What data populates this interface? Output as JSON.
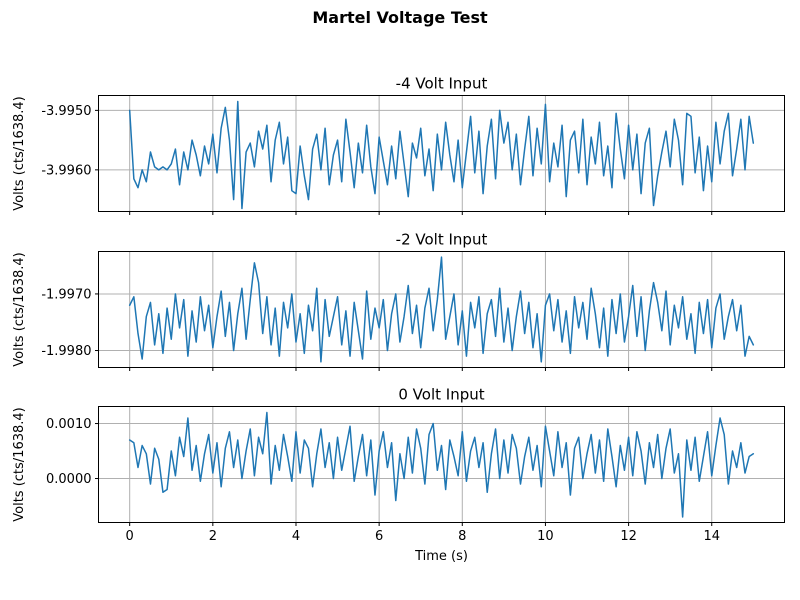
{
  "figure": {
    "title": "Martel Voltage Test",
    "background": "#ffffff",
    "line_color": "#1f77b4",
    "grid_color": "#b0b0b0",
    "spine_color": "#000000",
    "text_color": "#000000"
  },
  "chart_data": {
    "type": "line",
    "title": "Martel Voltage Test",
    "xlabel": "Time (s)",
    "ylabel": "Volts (cts/1638.4)",
    "grid": true,
    "legend": "none",
    "x_start": 0.0,
    "x_step": 0.1,
    "xlim": [
      -0.75,
      15.75
    ],
    "xticks": [
      0,
      2,
      4,
      6,
      8,
      10,
      12,
      14
    ],
    "xtick_labels": [
      "0",
      "2",
      "4",
      "6",
      "8",
      "10",
      "12",
      "14"
    ],
    "value_formula": "value_volts = base + dev[i] * step ; time_s = x_start + i * x_step",
    "subplots": [
      {
        "title": "-4 Volt Input",
        "ylabel": "Volts (cts/1638.4)",
        "ylim": [
          -3.9967,
          -3.99475
        ],
        "yticks": [
          -3.995,
          -3.996
        ],
        "ytick_labels": [
          "-3.9950",
          "-3.9960"
        ],
        "base": -3.9958,
        "step": 5e-05,
        "dev": [
          16,
          -7,
          -10,
          -4,
          -8,
          2,
          -3,
          -4,
          -3,
          -4,
          -2,
          3,
          -9,
          2,
          -4,
          6,
          1,
          -6,
          4,
          -2,
          8,
          -5,
          10,
          17,
          6,
          -14,
          19,
          -17,
          2,
          5,
          -3,
          9,
          3,
          11,
          -8,
          6,
          12,
          -2,
          7,
          -11,
          -12,
          4,
          -6,
          -14,
          3,
          8,
          -4,
          10,
          -9,
          1,
          6,
          -8,
          13,
          2,
          -10,
          5,
          -5,
          11,
          -3,
          -12,
          7,
          -1,
          -9,
          4,
          -7,
          9,
          -2,
          -13,
          5,
          0,
          10,
          -6,
          3,
          -11,
          8,
          -4,
          12,
          1,
          -8,
          6,
          -10,
          2,
          14,
          -5,
          9,
          -12,
          4,
          13,
          -7,
          16,
          5,
          12,
          -4,
          8,
          -9,
          3,
          14,
          -6,
          10,
          -2,
          18,
          -8,
          5,
          -3,
          11,
          -13,
          6,
          9,
          -5,
          13,
          -9,
          7,
          -2,
          12,
          -6,
          4,
          -10,
          15,
          3,
          -7,
          11,
          -4,
          8,
          -12,
          5,
          10,
          -16,
          -6,
          2,
          9,
          -3,
          13,
          6,
          -9,
          15,
          14,
          -5,
          7,
          -11,
          4,
          -8,
          12,
          -2,
          9,
          15,
          -6,
          3,
          13,
          -4,
          14,
          5
        ]
      },
      {
        "title": "-2 Volt Input",
        "ylabel": "Volts (cts/1638.4)",
        "ylim": [
          -1.9983,
          -1.99625
        ],
        "yticks": [
          -1.997,
          -1.998
        ],
        "ytick_labels": [
          "-1.9970",
          "-1.9980"
        ],
        "base": -1.9975,
        "step": 5e-05,
        "dev": [
          6,
          9,
          -4,
          -13,
          2,
          7,
          -8,
          3,
          -11,
          5,
          -6,
          10,
          -2,
          8,
          -12,
          4,
          -7,
          9,
          -3,
          6,
          -9,
          2,
          11,
          -5,
          7,
          -10,
          3,
          12,
          -6,
          8,
          21,
          14,
          -4,
          9,
          -8,
          5,
          -12,
          7,
          -2,
          10,
          -7,
          3,
          -11,
          6,
          -3,
          12,
          -14,
          8,
          -5,
          2,
          9,
          -8,
          4,
          -12,
          7,
          -3,
          -13,
          11,
          -6,
          5,
          -2,
          8,
          -10,
          3,
          10,
          -7,
          2,
          13,
          -4,
          6,
          -9,
          5,
          12,
          -3,
          8,
          23,
          -6,
          2,
          10,
          -8,
          4,
          -12,
          7,
          -2,
          9,
          -11,
          3,
          8,
          -5,
          12,
          -7,
          5,
          -10,
          2,
          11,
          -4,
          7,
          -9,
          3,
          -14,
          6,
          10,
          -3,
          8,
          -7,
          4,
          -11,
          9,
          -2,
          7,
          -6,
          12,
          3,
          -9,
          5,
          -12,
          8,
          -4,
          10,
          -7,
          2,
          13,
          -5,
          9,
          -10,
          4,
          14,
          7,
          -3,
          11,
          -8,
          6,
          -2,
          9,
          -6,
          3,
          -11,
          7,
          -4,
          8,
          -9,
          5,
          10,
          -6,
          2,
          8,
          -3,
          6,
          -12,
          -5,
          -8
        ]
      },
      {
        "title": "0 Volt Input",
        "ylabel": "Volts (cts/1638.4)",
        "ylim": [
          -0.0008,
          0.00131
        ],
        "yticks": [
          0.001,
          0.0
        ],
        "ytick_labels": [
          "0.0010",
          "0.0000"
        ],
        "base": 0.0003,
        "step": 5e-05,
        "dev": [
          8,
          7,
          -2,
          6,
          3,
          -8,
          5,
          1,
          -11,
          -10,
          4,
          -5,
          9,
          2,
          16,
          -3,
          6,
          -7,
          3,
          10,
          -4,
          7,
          -9,
          5,
          11,
          -2,
          8,
          -6,
          4,
          12,
          -5,
          9,
          3,
          18,
          -8,
          6,
          -3,
          10,
          2,
          -7,
          11,
          -4,
          8,
          5,
          -9,
          3,
          12,
          -2,
          7,
          -6,
          9,
          -3,
          5,
          13,
          -7,
          2,
          10,
          -5,
          8,
          -12,
          4,
          11,
          -2,
          7,
          -14,
          3,
          -6,
          9,
          -4,
          12,
          5,
          -8,
          10,
          14,
          -3,
          6,
          -10,
          8,
          2,
          -5,
          11,
          -7,
          4,
          9,
          -2,
          7,
          -11,
          3,
          12,
          -6,
          8,
          -4,
          10,
          5,
          -8,
          2,
          9,
          -3,
          6,
          -9,
          13,
          4,
          -5,
          11,
          -2,
          7,
          -12,
          5,
          9,
          -6,
          3,
          10,
          -4,
          8,
          -7,
          12,
          2,
          -9,
          6,
          -3,
          9,
          -5,
          11,
          4,
          -8,
          7,
          -2,
          10,
          -6,
          5,
          12,
          -4,
          3,
          -20,
          8,
          -3,
          9,
          -7,
          2,
          11,
          -5,
          6,
          16,
          10,
          -8,
          4,
          -2,
          7,
          -4,
          2,
          3
        ]
      }
    ]
  }
}
